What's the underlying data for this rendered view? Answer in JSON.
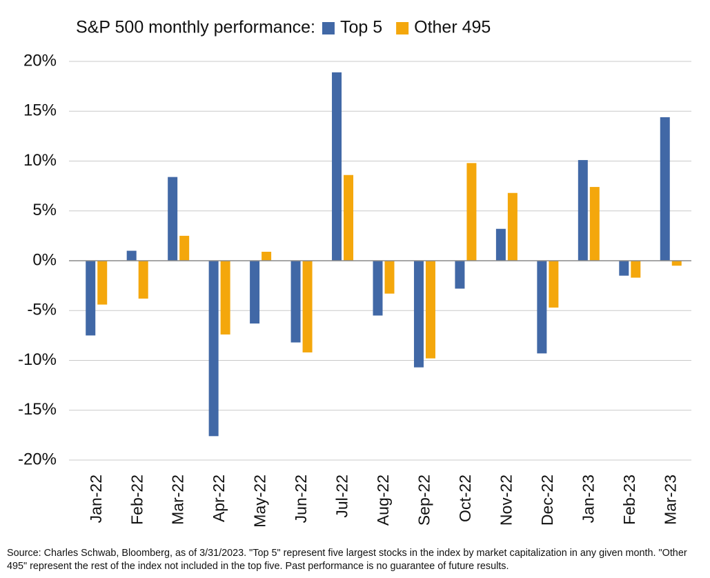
{
  "chart_data": {
    "type": "bar",
    "title": "S&P 500 monthly performance:",
    "categories": [
      "Jan-22",
      "Feb-22",
      "Mar-22",
      "Apr-22",
      "May-22",
      "Jun-22",
      "Jul-22",
      "Aug-22",
      "Sep-22",
      "Oct-22",
      "Nov-22",
      "Dec-22",
      "Jan-23",
      "Feb-23",
      "Mar-23"
    ],
    "series": [
      {
        "name": "Top 5",
        "color": "#4168a6",
        "values": [
          -7.5,
          1.0,
          8.4,
          -17.6,
          -6.3,
          -8.2,
          18.9,
          -5.5,
          -10.7,
          -2.8,
          3.2,
          -9.3,
          10.1,
          -1.5,
          14.4
        ]
      },
      {
        "name": "Other 495",
        "color": "#f4a70c",
        "values": [
          -4.4,
          -3.8,
          2.5,
          -7.4,
          0.9,
          -9.2,
          8.6,
          -3.3,
          -9.8,
          9.8,
          6.8,
          -4.7,
          7.4,
          -1.7,
          -0.5
        ]
      }
    ],
    "ylim": [
      -20,
      20
    ],
    "yticks": [
      {
        "value": -20,
        "label": "-20%"
      },
      {
        "value": -15,
        "label": "-15%"
      },
      {
        "value": -10,
        "label": "-10%"
      },
      {
        "value": -5,
        "label": "-5%"
      },
      {
        "value": 0,
        "label": "0%"
      },
      {
        "value": 5,
        "label": "5%"
      },
      {
        "value": 10,
        "label": "10%"
      },
      {
        "value": 15,
        "label": "15%"
      },
      {
        "value": 20,
        "label": "20%"
      }
    ],
    "grid": true,
    "legend": "top",
    "footnote": "Source: Charles Schwab, Bloomberg, as of 3/31/2023. \"Top 5\" represent five largest stocks in the index by market capitalization in any given month. \"Other 495\" represent the rest of the index not included in the top five. Past performance is no guarantee of future results."
  }
}
